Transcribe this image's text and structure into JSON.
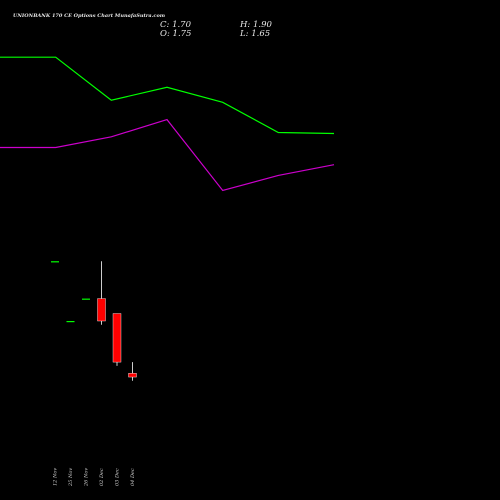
{
  "header": {
    "title": "UNIONBANK 170  CE Options  Chart MunafaSutra.com",
    "close": "C: 1.70",
    "high": "H: 1.90",
    "open": "O: 1.75",
    "low": "L: 1.65"
  },
  "colors": {
    "background": "#000000",
    "green_line": "#00ff00",
    "magenta_line": "#cc00cc",
    "up_candle": "#00ff00",
    "down_candle": "#ff0000",
    "wick": "#ffffff"
  },
  "chart_data": [
    {
      "type": "line",
      "series": [
        {
          "color": "#00ff00",
          "values": [
            0.92,
            0.92,
            0.72,
            0.78,
            0.71,
            0.57,
            0.565
          ]
        },
        {
          "color": "#cc00cc",
          "values": [
            0.5,
            0.5,
            0.55,
            0.63,
            0.3,
            0.37,
            0.42
          ]
        }
      ],
      "x": [
        0,
        1,
        2,
        3,
        4,
        5,
        6
      ],
      "ylim": [
        0,
        1
      ],
      "grid": false
    },
    {
      "type": "candlestick",
      "categories": [
        "12 Nov",
        "25 Nov",
        "26 Nov",
        "02 Dec",
        "03 Dec",
        "04 Dec"
      ],
      "ohlc": [
        {
          "open": 3.25,
          "high": 3.25,
          "low": 3.25,
          "close": 3.25
        },
        {
          "open": 2.45,
          "high": 2.45,
          "low": 2.45,
          "close": 2.45
        },
        {
          "open": 2.75,
          "high": 2.75,
          "low": 2.75,
          "close": 2.75
        },
        {
          "open": 2.75,
          "high": 3.25,
          "low": 2.4,
          "close": 2.45
        },
        {
          "open": 2.55,
          "high": 2.55,
          "low": 1.85,
          "close": 1.9
        },
        {
          "open": 1.75,
          "high": 1.9,
          "low": 1.65,
          "close": 1.7
        }
      ],
      "ylim": [
        1.5,
        3.4
      ]
    }
  ]
}
